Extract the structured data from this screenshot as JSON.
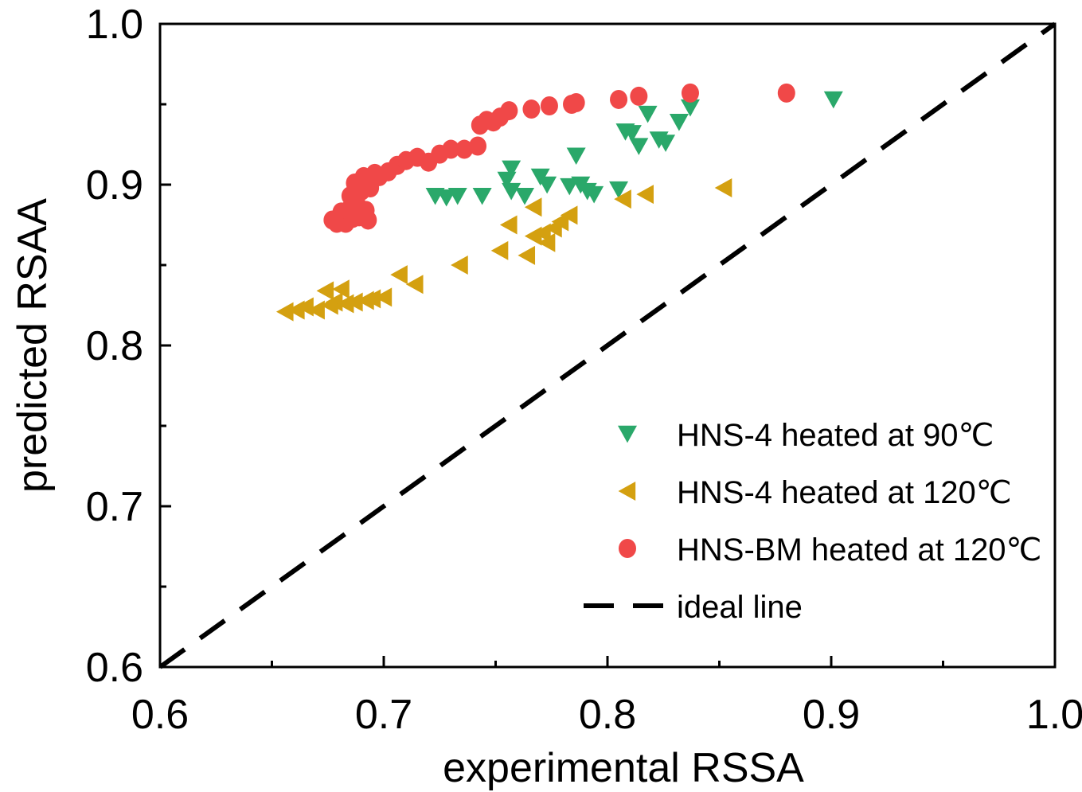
{
  "chart_data": {
    "type": "scatter",
    "title": "",
    "xlabel": "experimental RSSA",
    "ylabel": "predicted RSAA",
    "xlim": [
      0.6,
      1.0
    ],
    "ylim": [
      0.6,
      1.0
    ],
    "xticks": [
      0.6,
      0.7,
      0.8,
      0.9,
      1.0
    ],
    "yticks": [
      0.6,
      0.7,
      0.8,
      0.9,
      1.0
    ],
    "xtick_labels": [
      "0.6",
      "0.7",
      "0.8",
      "0.9",
      "1.0"
    ],
    "ytick_labels": [
      "0.6",
      "0.7",
      "0.8",
      "0.9",
      "1.0"
    ],
    "grid": false,
    "legend_position": "bottom-right",
    "series": [
      {
        "name": "HNS-4 heated at 90℃",
        "marker": "triangle-down",
        "color": "#2aa86a",
        "points": [
          [
            0.723,
            0.893
          ],
          [
            0.728,
            0.892
          ],
          [
            0.733,
            0.893
          ],
          [
            0.744,
            0.893
          ],
          [
            0.755,
            0.903
          ],
          [
            0.757,
            0.91
          ],
          [
            0.757,
            0.896
          ],
          [
            0.763,
            0.893
          ],
          [
            0.77,
            0.905
          ],
          [
            0.773,
            0.9
          ],
          [
            0.783,
            0.899
          ],
          [
            0.786,
            0.918
          ],
          [
            0.788,
            0.9
          ],
          [
            0.791,
            0.896
          ],
          [
            0.794,
            0.894
          ],
          [
            0.805,
            0.897
          ],
          [
            0.808,
            0.933
          ],
          [
            0.811,
            0.932
          ],
          [
            0.814,
            0.924
          ],
          [
            0.818,
            0.944
          ],
          [
            0.823,
            0.928
          ],
          [
            0.826,
            0.926
          ],
          [
            0.832,
            0.939
          ],
          [
            0.837,
            0.948
          ],
          [
            0.901,
            0.953
          ]
        ]
      },
      {
        "name": "HNS-4 heated at 120℃",
        "marker": "triangle-left",
        "color": "#d4a010",
        "points": [
          [
            0.656,
            0.821
          ],
          [
            0.661,
            0.822
          ],
          [
            0.665,
            0.824
          ],
          [
            0.67,
            0.822
          ],
          [
            0.674,
            0.834
          ],
          [
            0.676,
            0.825
          ],
          [
            0.678,
            0.827
          ],
          [
            0.681,
            0.835
          ],
          [
            0.683,
            0.826
          ],
          [
            0.687,
            0.827
          ],
          [
            0.692,
            0.828
          ],
          [
            0.695,
            0.829
          ],
          [
            0.7,
            0.83
          ],
          [
            0.707,
            0.844
          ],
          [
            0.714,
            0.838
          ],
          [
            0.734,
            0.85
          ],
          [
            0.752,
            0.859
          ],
          [
            0.756,
            0.875
          ],
          [
            0.764,
            0.856
          ],
          [
            0.767,
            0.868
          ],
          [
            0.767,
            0.886
          ],
          [
            0.771,
            0.87
          ],
          [
            0.773,
            0.864
          ],
          [
            0.776,
            0.873
          ],
          [
            0.779,
            0.877
          ],
          [
            0.783,
            0.881
          ],
          [
            0.807,
            0.891
          ],
          [
            0.817,
            0.894
          ],
          [
            0.852,
            0.898
          ]
        ]
      },
      {
        "name": "HNS-BM heated at 120℃",
        "marker": "circle",
        "color": "#f04848",
        "points": [
          [
            0.677,
            0.878
          ],
          [
            0.679,
            0.876
          ],
          [
            0.681,
            0.883
          ],
          [
            0.683,
            0.876
          ],
          [
            0.684,
            0.884
          ],
          [
            0.685,
            0.893
          ],
          [
            0.686,
            0.879
          ],
          [
            0.687,
            0.901
          ],
          [
            0.688,
            0.888
          ],
          [
            0.689,
            0.88
          ],
          [
            0.69,
            0.896
          ],
          [
            0.691,
            0.905
          ],
          [
            0.692,
            0.884
          ],
          [
            0.693,
            0.878
          ],
          [
            0.694,
            0.898
          ],
          [
            0.696,
            0.907
          ],
          [
            0.698,
            0.905
          ],
          [
            0.702,
            0.908
          ],
          [
            0.706,
            0.912
          ],
          [
            0.71,
            0.915
          ],
          [
            0.715,
            0.917
          ],
          [
            0.72,
            0.914
          ],
          [
            0.725,
            0.919
          ],
          [
            0.73,
            0.922
          ],
          [
            0.736,
            0.922
          ],
          [
            0.742,
            0.924
          ],
          [
            0.743,
            0.937
          ],
          [
            0.746,
            0.94
          ],
          [
            0.749,
            0.939
          ],
          [
            0.752,
            0.942
          ],
          [
            0.756,
            0.946
          ],
          [
            0.766,
            0.947
          ],
          [
            0.774,
            0.949
          ],
          [
            0.784,
            0.95
          ],
          [
            0.786,
            0.951
          ],
          [
            0.805,
            0.953
          ],
          [
            0.814,
            0.955
          ],
          [
            0.837,
            0.957
          ],
          [
            0.88,
            0.957
          ]
        ]
      },
      {
        "name": "ideal line",
        "marker": "dashed-line",
        "color": "#000000",
        "points": [
          [
            0.6,
            0.6
          ],
          [
            1.0,
            1.0
          ]
        ]
      }
    ]
  }
}
